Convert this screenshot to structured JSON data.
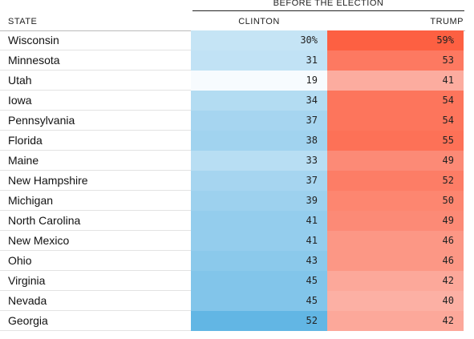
{
  "chart_data": {
    "type": "table",
    "column_group": "BEFORE THE ELECTION",
    "columns": [
      "STATE",
      "CLINTON",
      "TRUMP"
    ],
    "rows": [
      {
        "state": "Wisconsin",
        "clinton": "30%",
        "trump": "59%",
        "c": 30,
        "t": 59
      },
      {
        "state": "Minnesota",
        "clinton": "31",
        "trump": "53",
        "c": 31,
        "t": 53
      },
      {
        "state": "Utah",
        "clinton": "19",
        "trump": "41",
        "c": 19,
        "t": 41
      },
      {
        "state": "Iowa",
        "clinton": "34",
        "trump": "54",
        "c": 34,
        "t": 54
      },
      {
        "state": "Pennsylvania",
        "clinton": "37",
        "trump": "54",
        "c": 37,
        "t": 54
      },
      {
        "state": "Florida",
        "clinton": "38",
        "trump": "55",
        "c": 38,
        "t": 55
      },
      {
        "state": "Maine",
        "clinton": "33",
        "trump": "49",
        "c": 33,
        "t": 49
      },
      {
        "state": "New Hampshire",
        "clinton": "37",
        "trump": "52",
        "c": 37,
        "t": 52
      },
      {
        "state": "Michigan",
        "clinton": "39",
        "trump": "50",
        "c": 39,
        "t": 50
      },
      {
        "state": "North Carolina",
        "clinton": "41",
        "trump": "49",
        "c": 41,
        "t": 49
      },
      {
        "state": "New Mexico",
        "clinton": "41",
        "trump": "46",
        "c": 41,
        "t": 46
      },
      {
        "state": "Ohio",
        "clinton": "43",
        "trump": "46",
        "c": 43,
        "t": 46
      },
      {
        "state": "Virginia",
        "clinton": "45",
        "trump": "42",
        "c": 45,
        "t": 42
      },
      {
        "state": "Nevada",
        "clinton": "45",
        "trump": "40",
        "c": 45,
        "t": 40
      },
      {
        "state": "Georgia",
        "clinton": "52",
        "trump": "42",
        "c": 52,
        "t": 42
      }
    ],
    "colors": {
      "clinton_low": "#f7fbfe",
      "clinton_high": "#62b6e4",
      "trump_low": "#fcb0a4",
      "trump_high": "#fd6042"
    }
  }
}
